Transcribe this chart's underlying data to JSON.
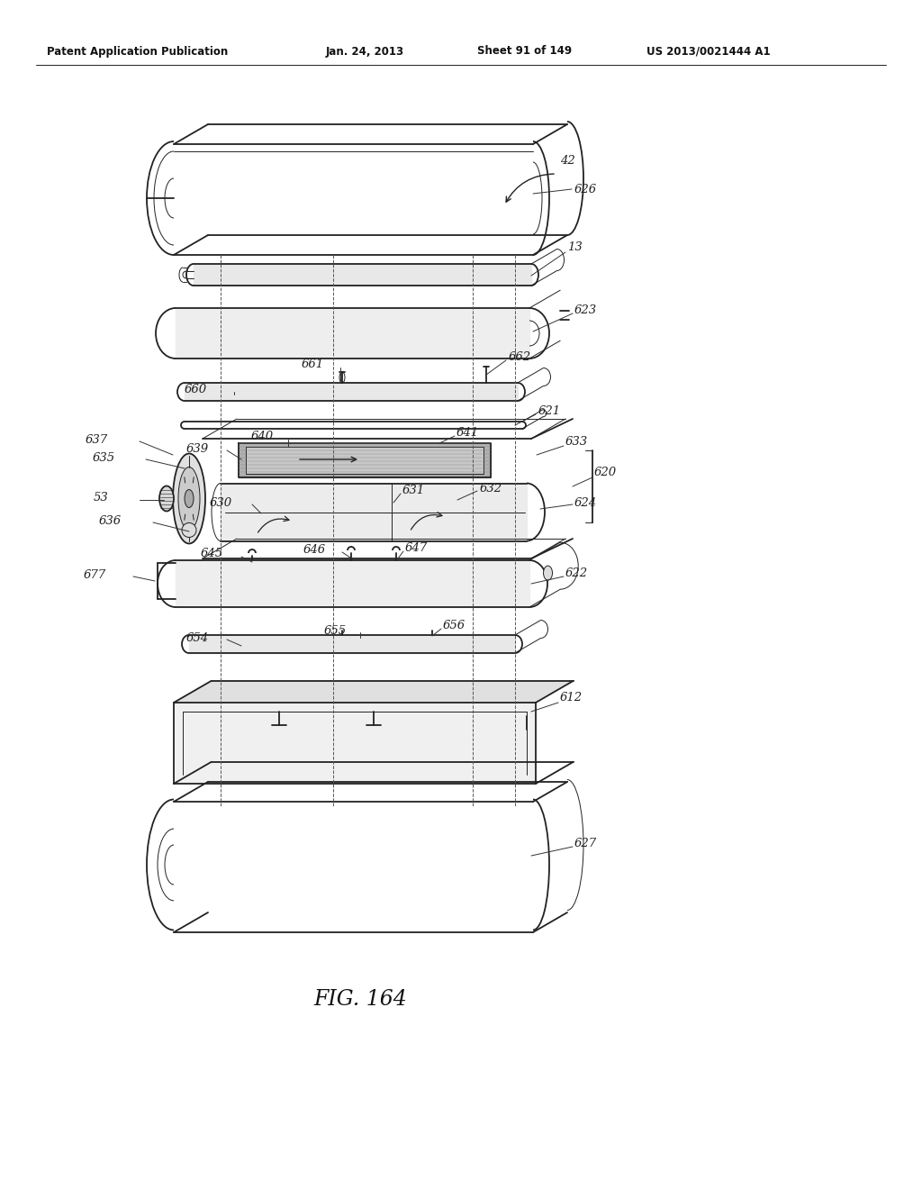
{
  "header_left": "Patent Application Publication",
  "header_date": "Jan. 24, 2013",
  "header_sheet": "Sheet 91 of 149",
  "header_patent": "US 2013/0021444 A1",
  "figure_label": "FIG. 164",
  "background_color": "#ffffff",
  "line_color": "#222222",
  "label_color": "#222222",
  "lw_main": 1.3,
  "lw_thin": 0.7,
  "lw_dash": 0.7
}
